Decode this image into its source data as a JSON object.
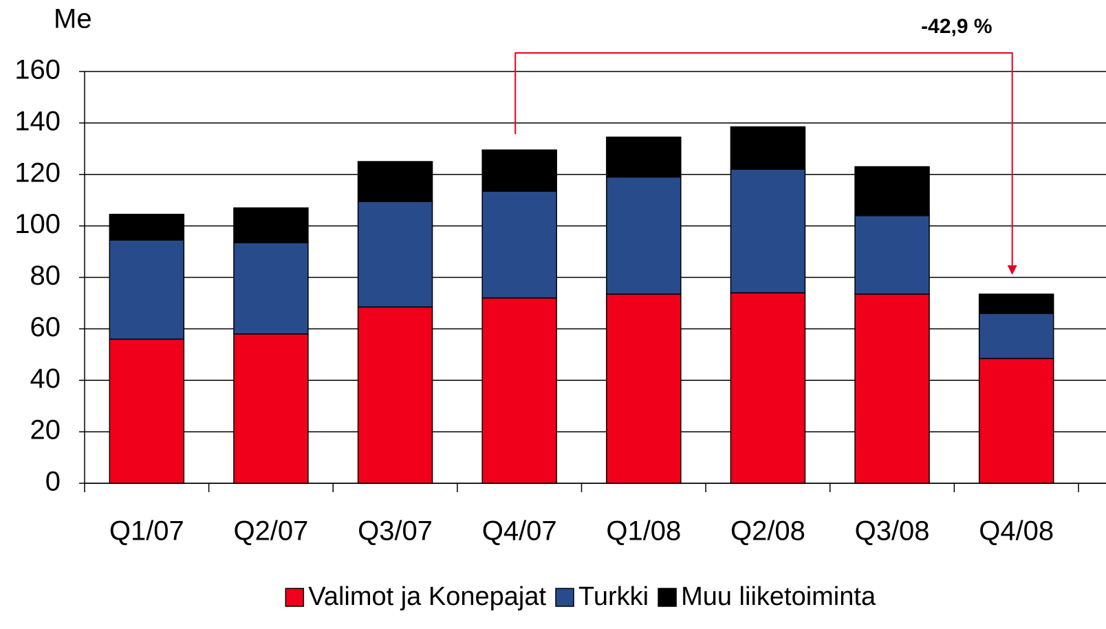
{
  "chart_data": {
    "type": "stacked-bar",
    "y_axis_label": "Me",
    "categories": [
      "Q1/07",
      "Q2/07",
      "Q3/07",
      "Q4/07",
      "Q1/08",
      "Q2/08",
      "Q3/08",
      "Q4/08"
    ],
    "series": [
      {
        "name": "Valimot ja Konepajat",
        "color": "#f0001a",
        "values": [
          56,
          58,
          68.5,
          72,
          73.5,
          74,
          73.5,
          48.5
        ]
      },
      {
        "name": "Turkki",
        "color": "#284b8c",
        "values": [
          38.5,
          35.5,
          41,
          41.5,
          45.5,
          48,
          30.5,
          17.5
        ]
      },
      {
        "name": "Muu liiketoiminta",
        "color": "#000000",
        "values": [
          10,
          13.5,
          15.5,
          16,
          15.5,
          16.5,
          19,
          7.5
        ]
      }
    ],
    "annotation": "-42,9 %",
    "ylim": [
      0,
      160
    ],
    "yticks": [
      0,
      20,
      40,
      60,
      80,
      100,
      120,
      140,
      160
    ],
    "grid": true,
    "legend": "bottom"
  }
}
